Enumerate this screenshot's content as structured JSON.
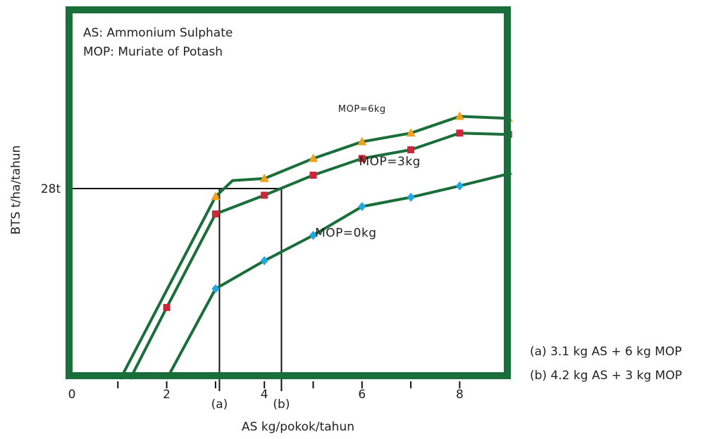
{
  "chart_data": {
    "type": "line",
    "xlabel": "AS kg/pokok/tahun",
    "ylabel": "BTS t/ha/tahun",
    "x_tick_labels": [
      "0",
      "2",
      "4",
      "6",
      "8"
    ],
    "x_tick_values": [
      0,
      2,
      4,
      6,
      8
    ],
    "x_minor_ticks": [
      1,
      3,
      5,
      7
    ],
    "xlim": [
      0,
      9
    ],
    "ylim": [
      0,
      45
    ],
    "y_tick_labels": [
      "28t"
    ],
    "y_tick_values": [
      28
    ],
    "legend": [
      "AS: Ammonium Sulphate",
      "MOP: Muriate of Potash"
    ],
    "notes": [
      "(a) 3.1 kg AS + 6 kg MOP",
      "(b) 4.2 kg AS + 3 kg MOP"
    ],
    "reference_lines": [
      {
        "label": "(a)",
        "x": 3.08,
        "y": 28
      },
      {
        "label": "(b)",
        "x": 4.35,
        "y": 28
      }
    ],
    "series": [
      {
        "name": "MOP=6kg",
        "color": "#1a6e3a",
        "marker": "triangle",
        "marker_color": "#f0a020",
        "points": [
          [
            1.05,
            -0.5
          ],
          [
            3.0,
            26.8
          ],
          [
            3.35,
            29.2
          ],
          [
            4.0,
            29.5
          ],
          [
            5.0,
            32.5
          ],
          [
            6.0,
            35.0
          ],
          [
            7.0,
            36.3
          ],
          [
            8.0,
            38.8
          ],
          [
            9.0,
            38.5
          ]
        ],
        "markers": [
          [
            3.0,
            26.8
          ],
          [
            4.0,
            29.5
          ],
          [
            5.0,
            32.5
          ],
          [
            6.0,
            35.0
          ],
          [
            7.0,
            36.3
          ],
          [
            8.0,
            38.8
          ],
          [
            9.0,
            38.5
          ]
        ]
      },
      {
        "name": "MOP=3kg",
        "color": "#1a6e3a",
        "marker": "square",
        "marker_color": "#c8283a",
        "points": [
          [
            1.25,
            -0.5
          ],
          [
            2.0,
            10.2
          ],
          [
            3.0,
            24.2
          ],
          [
            4.0,
            27.0
          ],
          [
            5.0,
            30.0
          ],
          [
            6.0,
            32.5
          ],
          [
            7.0,
            33.8
          ],
          [
            8.0,
            36.3
          ],
          [
            9.0,
            36.1
          ]
        ],
        "markers": [
          [
            2.0,
            10.2
          ],
          [
            3.0,
            24.2
          ],
          [
            4.0,
            27.0
          ],
          [
            5.0,
            30.0
          ],
          [
            6.0,
            32.5
          ],
          [
            7.0,
            33.8
          ],
          [
            8.0,
            36.3
          ],
          [
            9.0,
            36.1
          ]
        ]
      },
      {
        "name": "MOP=0kg",
        "color": "#1a6e3a",
        "marker": "diamond",
        "marker_color": "#22a8e0",
        "points": [
          [
            2.0,
            -0.5
          ],
          [
            3.0,
            13.0
          ],
          [
            4.0,
            17.2
          ],
          [
            5.0,
            21.0
          ],
          [
            6.0,
            25.3
          ],
          [
            7.0,
            26.7
          ],
          [
            8.0,
            28.4
          ],
          [
            9.0,
            30.2
          ]
        ],
        "markers": [
          [
            3.0,
            13.0
          ],
          [
            4.0,
            17.2
          ],
          [
            5.0,
            21.0
          ],
          [
            6.0,
            25.3
          ],
          [
            7.0,
            26.7
          ],
          [
            8.0,
            28.4
          ],
          [
            9.0,
            30.2
          ]
        ]
      }
    ]
  }
}
